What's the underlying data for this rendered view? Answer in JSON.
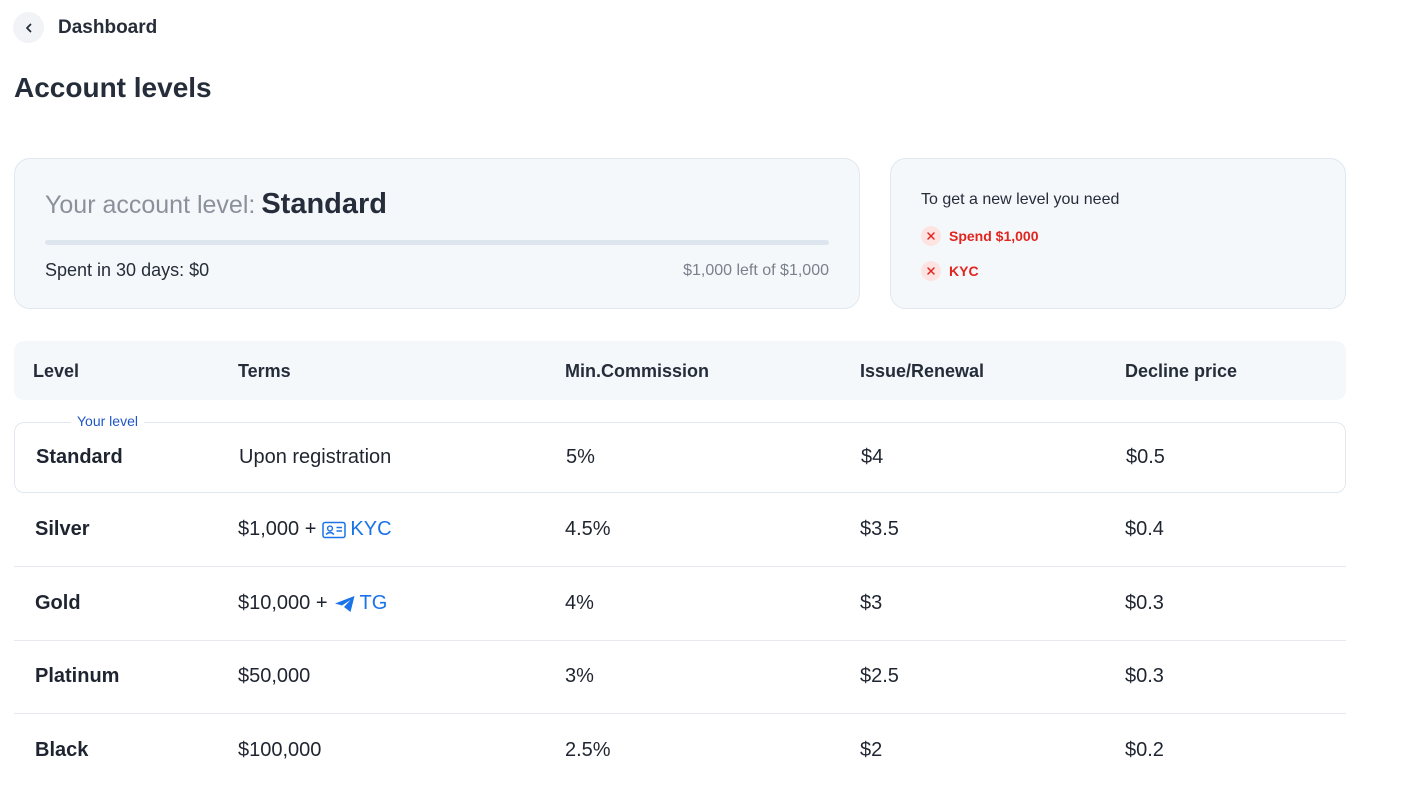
{
  "nav": {
    "back_label": "Dashboard",
    "back_icon": "chevron-left-icon"
  },
  "page": {
    "title": "Account levels"
  },
  "level_card": {
    "prefix": "Your account level:",
    "current_level": "Standard",
    "progress_fraction": 0,
    "spent_text": "Spent in 30 days: $0",
    "left_text": "$1,000 left of $1,000"
  },
  "requirements_card": {
    "title": "To get a new level you need",
    "items": [
      {
        "label": "Spend $1,000",
        "icon": "x-circle-icon"
      },
      {
        "label": "KYC",
        "icon": "x-circle-icon"
      }
    ]
  },
  "table": {
    "headers": [
      "Level",
      "Terms",
      "Min.Commission",
      "Issue/Renewal",
      "Decline price"
    ],
    "current_badge": "Your level",
    "rows": [
      {
        "level": "Standard",
        "terms": "Upon registration",
        "commission": "5%",
        "issue": "$4",
        "decline": "$0.5"
      },
      {
        "level": "Silver",
        "terms": "$1,000 +",
        "terms_link": "KYC",
        "terms_icon": "id-card-icon",
        "commission": "4.5%",
        "issue": "$3.5",
        "decline": "$0.4"
      },
      {
        "level": "Gold",
        "terms": "$10,000 +",
        "terms_link": "TG",
        "terms_icon": "telegram-icon",
        "commission": "4%",
        "issue": "$3",
        "decline": "$0.3"
      },
      {
        "level": "Platinum",
        "terms": "$50,000",
        "commission": "3%",
        "issue": "$2.5",
        "decline": "$0.3"
      },
      {
        "level": "Black",
        "terms": "$100,000",
        "commission": "2.5%",
        "issue": "$2",
        "decline": "$0.2"
      }
    ]
  },
  "colors": {
    "accent": "#1a73e8",
    "danger": "#e0261f",
    "card_bg": "#f5f8fb"
  }
}
